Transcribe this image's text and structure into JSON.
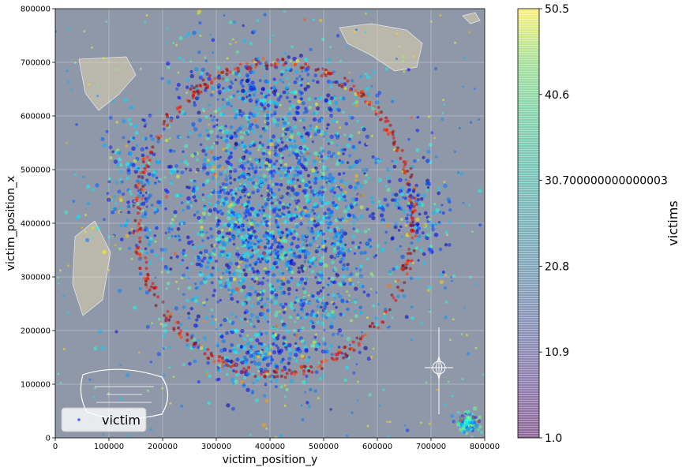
{
  "chart_data": {
    "type": "scatter",
    "title": "",
    "xlabel": "victim_position_y",
    "ylabel": "victim_position_x",
    "xlim": [
      0,
      800000
    ],
    "ylim": [
      0,
      800000
    ],
    "xticks": [
      "0",
      "100000",
      "200000",
      "300000",
      "400000",
      "500000",
      "600000",
      "700000",
      "800000"
    ],
    "yticks": [
      "0",
      "100000",
      "200000",
      "300000",
      "400000",
      "500000",
      "600000",
      "700000",
      "800000"
    ],
    "grid": true,
    "legend": {
      "placement": "lower-left",
      "entries": [
        "victim"
      ]
    },
    "colorbar": {
      "label": "victims",
      "range": [
        1.0,
        50.5
      ],
      "ticks": [
        {
          "value": 50.5,
          "label": "50.5"
        },
        {
          "value": 40.6,
          "label": "40.6"
        },
        {
          "value": 30.700000000000003,
          "label": "30.700000000000003"
        },
        {
          "value": 20.8,
          "label": "20.8"
        },
        {
          "value": 10.9,
          "label": "10.9"
        },
        {
          "value": 1.0,
          "label": "1.0"
        }
      ],
      "colormap": "viridis"
    },
    "series": [
      {
        "name": "victim",
        "marker_colormap": "jet",
        "clusters": [
          {
            "center": [
              410000,
              410000
            ],
            "spread": [
              200000,
              230000
            ],
            "level": 0.18
          },
          {
            "center": [
              410000,
              410000
            ],
            "spread": [
              250000,
              280000
            ],
            "level": 0.3
          },
          {
            "center": [
              400000,
              650000
            ],
            "spread": [
              150000,
              60000
            ],
            "level": 0.2
          },
          {
            "center": [
              150000,
              480000
            ],
            "spread": [
              60000,
              120000
            ],
            "level": 0.22
          },
          {
            "center": [
              680000,
              420000
            ],
            "spread": [
              60000,
              90000
            ],
            "level": 0.2
          },
          {
            "center": [
              400000,
              150000
            ],
            "spread": [
              150000,
              60000
            ],
            "level": 0.25
          },
          {
            "center": [
              770000,
              30000
            ],
            "spread": [
              20000,
              20000
            ],
            "level": 0.35
          }
        ],
        "ring": {
          "center": [
            410000,
            410000
          ],
          "radius": [
            258000,
            290000
          ],
          "level": 0.9
        }
      }
    ]
  },
  "colors": {
    "map_background": "#8f98a8",
    "land": "#c9c2ad",
    "axes_edge": "#000000",
    "grid": "#ffffff"
  }
}
